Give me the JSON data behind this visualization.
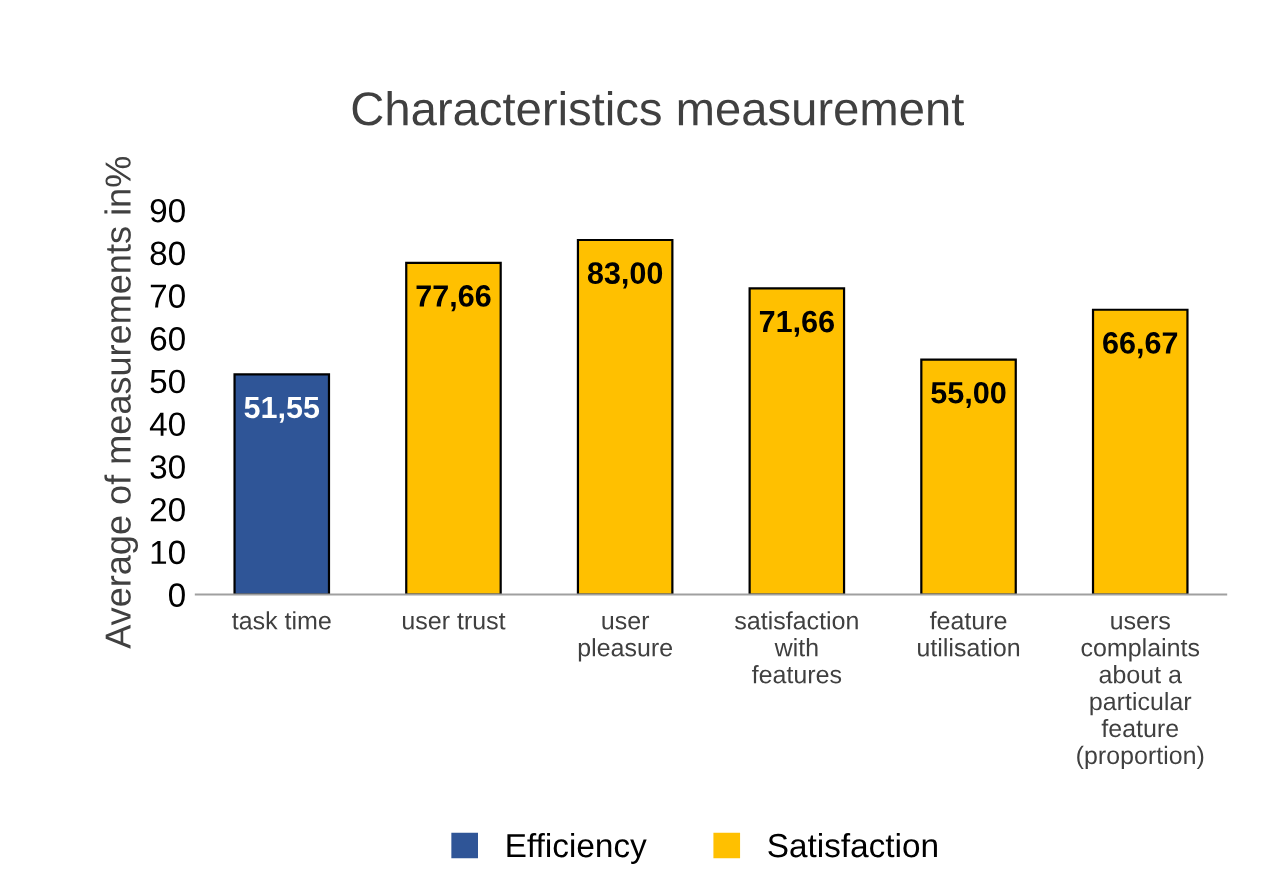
{
  "chart_data": {
    "type": "bar",
    "title": "Characteristics measurement",
    "ylabel": "Average of measurements in%",
    "categories": [
      "task time",
      "user trust",
      "user\npleasure",
      "satisfaction\nwith\nfeatures",
      "feature\nutilisation",
      "users\ncomplaints\nabout a\nparticular\nfeature\n(proportion)"
    ],
    "series": [
      {
        "name": "Efficiency",
        "color": "#2f5597",
        "values": [
          51.55,
          null,
          null,
          null,
          null,
          null
        ],
        "value_labels": [
          "51,55",
          null,
          null,
          null,
          null,
          null
        ]
      },
      {
        "name": "Satisfaction",
        "color": "#ffc000",
        "values": [
          null,
          77.66,
          83.0,
          71.66,
          55.0,
          66.67
        ],
        "value_labels": [
          null,
          "77,66",
          "83,00",
          "71,66",
          "55,00",
          "66,67"
        ]
      }
    ],
    "ylim": [
      0,
      90
    ],
    "yticks": [
      0,
      10,
      20,
      30,
      40,
      50,
      60,
      70,
      80,
      90
    ],
    "grid": false,
    "legend": "bottom"
  }
}
